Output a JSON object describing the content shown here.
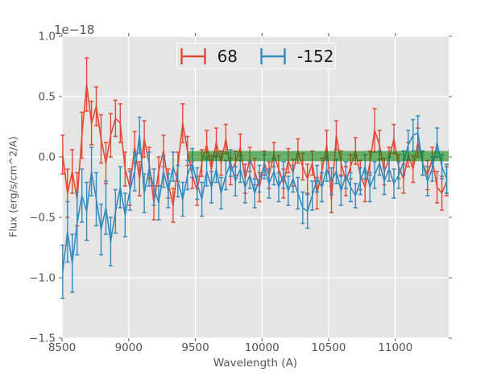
{
  "figure": {
    "offset_text": "1e−18",
    "xlabel": "Wavelength (A)",
    "ylabel": "Flux (erg/s/cm^2/A)"
  },
  "legend": {
    "position": "upper center",
    "entries": [
      {
        "label": "68",
        "color": "#E24A33",
        "marker": "errorbar-icon"
      },
      {
        "label": "-152",
        "color": "#348ABD",
        "marker": "errorbar-icon"
      }
    ]
  },
  "colors": {
    "figure_bg": "#ffffff",
    "axes_bg": "#E5E5E5",
    "grid": "#FFFFFF",
    "tick": "#666666",
    "label_text": "#555555",
    "series_red": "#E24A33",
    "series_blue": "#348ABD",
    "band_green": "#008000"
  },
  "chart_data": {
    "type": "line",
    "subtype": "errorbar-spectrum",
    "title": "",
    "xlabel": "Wavelength (A)",
    "ylabel": "Flux (erg/s/cm^2/A)",
    "y_offset_scale": "1e-18",
    "xlim": [
      8500,
      11400
    ],
    "ylim_units": [
      -1.5,
      1.0
    ],
    "xticks": [
      8500,
      9000,
      9500,
      10000,
      10500,
      11000
    ],
    "xtick_labels": [
      "8500",
      "9000",
      "9500",
      "10000",
      "10500",
      "11000"
    ],
    "yticks": [
      -1.5,
      -1.0,
      -0.5,
      0.0,
      0.5,
      1.0
    ],
    "ytick_labels": [
      "−1.5",
      "−1.0",
      "−0.5",
      "0.0",
      "0.5",
      "1.0"
    ],
    "grid": true,
    "legend_position": "upper center",
    "band": {
      "x_start": 9450,
      "x_end": 11400,
      "y_low": -0.035,
      "y_high": 0.05,
      "color": "#008000",
      "alpha": 0.55
    },
    "x_start": 8505,
    "x_step": 36,
    "n_points": 81,
    "series": [
      {
        "name": "68",
        "color": "#E24A33",
        "y": [
          0.02,
          -0.3,
          -0.12,
          -0.35,
          0.18,
          0.6,
          0.28,
          0.42,
          0.15,
          -0.05,
          0.18,
          0.32,
          0.28,
          -0.1,
          -0.25,
          0.08,
          -0.18,
          0.15,
          -0.05,
          -0.38,
          -0.12,
          0.05,
          -0.22,
          -0.4,
          -0.08,
          0.28,
          0.05,
          -0.15,
          -0.28,
          -0.05,
          0.1,
          -0.1,
          0.12,
          -0.05,
          0.15,
          -0.12,
          -0.05,
          0.08,
          -0.18,
          -0.02,
          -0.12,
          -0.25,
          -0.05,
          -0.15,
          0.02,
          -0.1,
          -0.22,
          -0.03,
          -0.13,
          0.05,
          -0.08,
          -0.18,
          -0.05,
          -0.3,
          -0.12,
          0.1,
          -0.35,
          0.18,
          -0.05,
          -0.2,
          -0.08,
          0.05,
          -0.15,
          -0.25,
          -0.05,
          0.22,
          0.1,
          -0.12,
          -0.02,
          0.15,
          -0.08,
          -0.18,
          0.02,
          -0.1,
          0.12,
          -0.05,
          -0.15,
          -0.02,
          -0.25,
          -0.3,
          -0.2
        ],
        "yerr": [
          0.16,
          0.2,
          0.18,
          0.22,
          0.19,
          0.22,
          0.18,
          0.16,
          0.2,
          0.17,
          0.18,
          0.15,
          0.16,
          0.14,
          0.15,
          0.13,
          0.14,
          0.15,
          0.13,
          0.14,
          0.12,
          0.13,
          0.12,
          0.14,
          0.12,
          0.16,
          0.12,
          0.11,
          0.12,
          0.11,
          0.12,
          0.11,
          0.12,
          0.1,
          0.12,
          0.11,
          0.1,
          0.11,
          0.12,
          0.1,
          0.11,
          0.12,
          0.1,
          0.11,
          0.1,
          0.11,
          0.12,
          0.1,
          0.11,
          0.1,
          0.11,
          0.12,
          0.1,
          0.13,
          0.11,
          0.12,
          0.11,
          0.12,
          0.1,
          0.12,
          0.1,
          0.11,
          0.12,
          0.12,
          0.1,
          0.18,
          0.12,
          0.11,
          0.1,
          0.12,
          0.1,
          0.12,
          0.1,
          0.11,
          0.12,
          0.1,
          0.12,
          0.1,
          0.13,
          0.14,
          0.12
        ]
      },
      {
        "name": "-152",
        "color": "#348ABD",
        "y": [
          -0.95,
          -0.62,
          -0.88,
          -0.55,
          -0.32,
          -0.45,
          -0.12,
          -0.35,
          -0.6,
          -0.42,
          -0.7,
          -0.45,
          -0.25,
          -0.48,
          -0.28,
          -0.12,
          0.18,
          -0.3,
          -0.1,
          -0.25,
          -0.38,
          -0.12,
          -0.28,
          -0.08,
          -0.2,
          -0.35,
          -0.15,
          -0.05,
          -0.22,
          -0.35,
          -0.12,
          -0.25,
          -0.1,
          -0.3,
          -0.15,
          -0.05,
          -0.2,
          -0.1,
          -0.25,
          -0.15,
          -0.3,
          -0.18,
          -0.08,
          -0.22,
          -0.12,
          -0.25,
          -0.15,
          -0.28,
          -0.18,
          -0.3,
          -0.42,
          -0.45,
          -0.32,
          -0.18,
          -0.25,
          -0.1,
          -0.2,
          -0.12,
          -0.28,
          -0.15,
          -0.25,
          -0.32,
          -0.2,
          -0.08,
          -0.25,
          -0.15,
          -0.05,
          -0.2,
          -0.1,
          -0.22,
          -0.15,
          -0.05,
          0.1,
          0.18,
          0.2,
          -0.05,
          -0.2,
          -0.1,
          0.12,
          -0.08,
          -0.18
        ],
        "yerr": [
          0.22,
          0.25,
          0.24,
          0.26,
          0.22,
          0.24,
          0.2,
          0.22,
          0.21,
          0.22,
          0.2,
          0.18,
          0.17,
          0.18,
          0.16,
          0.16,
          0.15,
          0.16,
          0.14,
          0.15,
          0.14,
          0.13,
          0.14,
          0.12,
          0.13,
          0.14,
          0.12,
          0.12,
          0.13,
          0.14,
          0.12,
          0.13,
          0.11,
          0.13,
          0.12,
          0.11,
          0.12,
          0.11,
          0.13,
          0.11,
          0.12,
          0.11,
          0.1,
          0.12,
          0.11,
          0.12,
          0.11,
          0.12,
          0.11,
          0.13,
          0.13,
          0.14,
          0.12,
          0.11,
          0.12,
          0.1,
          0.11,
          0.1,
          0.12,
          0.11,
          0.12,
          0.1,
          0.11,
          0.1,
          0.12,
          0.11,
          0.1,
          0.11,
          0.1,
          0.12,
          0.11,
          0.1,
          0.12,
          0.13,
          0.14,
          0.1,
          0.12,
          0.1,
          0.12,
          0.1,
          0.12
        ]
      }
    ]
  }
}
